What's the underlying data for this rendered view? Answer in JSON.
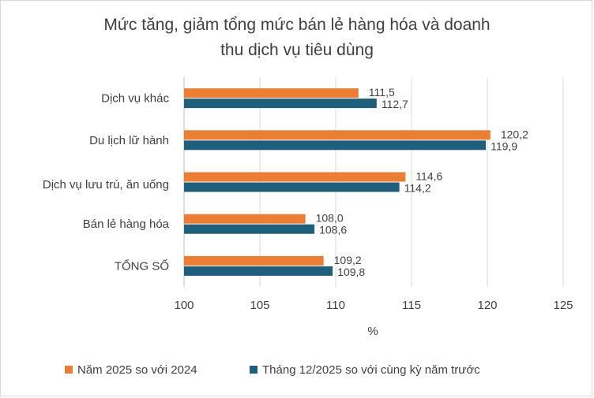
{
  "chart_data": {
    "type": "bar",
    "orientation": "horizontal",
    "title_line1": "Mức tăng, giảm tổng mức bán lẻ hàng hóa và doanh",
    "title_line2": "thu dịch vụ tiêu dùng",
    "xlabel": "%",
    "ylabel": "",
    "xlim": [
      100,
      125
    ],
    "xticks": [
      100,
      105,
      110,
      115,
      120,
      125
    ],
    "grid": "vertical",
    "legend_position": "bottom",
    "categories": [
      "Dịch vụ khác",
      "Du lịch lữ hành",
      "Dịch vụ lưu trú, ăn uống",
      "Bán lẻ hàng hóa",
      "TỔNG SỐ"
    ],
    "series": [
      {
        "name": "Năm 2025 so với 2024",
        "color": "#ed7d31",
        "values": [
          111.5,
          120.2,
          114.6,
          108.0,
          109.2
        ],
        "labels": [
          "111,5",
          "120,2",
          "114,6",
          "108,0",
          "109,2"
        ]
      },
      {
        "name": "Tháng 12/2025 so với cùng kỳ năm trước",
        "color": "#1f5f7e",
        "values": [
          112.7,
          119.9,
          114.2,
          108.6,
          109.8
        ],
        "labels": [
          "112,7",
          "119,9",
          "114,2",
          "108,6",
          "109,8"
        ]
      }
    ]
  }
}
